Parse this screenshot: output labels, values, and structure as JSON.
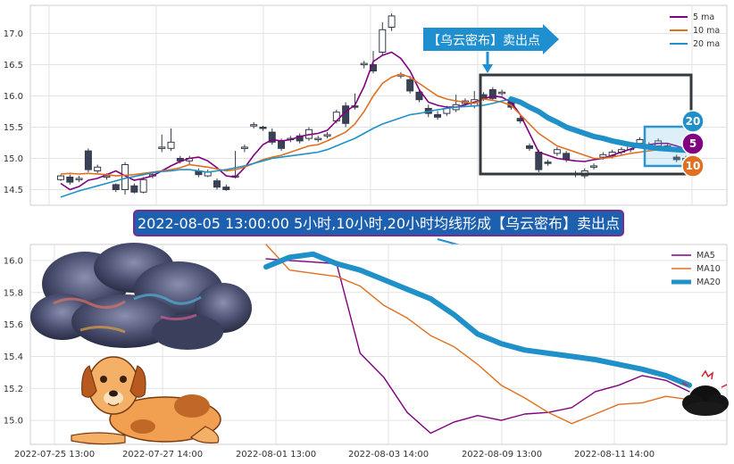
{
  "chart_data": [
    {
      "type": "candlestick",
      "ylim": [
        14.25,
        17.45
      ],
      "yticks": [
        "14.5",
        "15.0",
        "15.5",
        "16.0",
        "16.5",
        "17.0"
      ],
      "legend": {
        "placement": "top-right",
        "entries": [
          {
            "name": "5 ma",
            "color": "#800080"
          },
          {
            "name": "10 ma",
            "color": "#e07020"
          },
          {
            "name": "20 ma",
            "color": "#2090c8"
          }
        ]
      },
      "candles": [
        [
          14.66,
          14.72,
          14.64,
          14.74
        ],
        [
          14.7,
          14.62,
          14.58,
          14.74
        ],
        [
          14.66,
          14.68,
          14.62,
          14.72
        ],
        [
          15.12,
          14.82,
          14.78,
          15.16
        ],
        [
          14.8,
          14.86,
          14.76,
          14.9
        ],
        [
          14.7,
          14.72,
          14.66,
          14.76
        ],
        [
          14.58,
          14.5,
          14.46,
          14.6
        ],
        [
          14.5,
          14.9,
          14.42,
          14.94
        ],
        [
          14.56,
          14.46,
          14.44,
          14.6
        ],
        [
          14.46,
          14.66,
          14.44,
          14.7
        ],
        [
          14.72,
          14.74,
          14.68,
          14.76
        ],
        [
          15.16,
          15.18,
          15.1,
          15.38
        ],
        [
          15.16,
          15.26,
          15.12,
          15.48
        ],
        [
          15.0,
          14.96,
          14.92,
          15.04
        ],
        [
          14.96,
          15.0,
          14.9,
          15.04
        ],
        [
          14.8,
          14.74,
          14.7,
          14.84
        ],
        [
          14.72,
          14.78,
          14.7,
          14.82
        ],
        [
          14.64,
          14.54,
          14.5,
          14.68
        ],
        [
          14.54,
          14.5,
          14.48,
          14.58
        ],
        [
          14.7,
          14.72,
          14.68,
          15.12
        ],
        [
          15.16,
          15.18,
          15.1,
          15.22
        ],
        [
          15.52,
          15.54,
          15.48,
          15.58
        ],
        [
          15.5,
          15.48,
          15.44,
          15.52
        ],
        [
          15.42,
          15.26,
          15.22,
          15.48
        ],
        [
          15.28,
          15.16,
          15.12,
          15.32
        ],
        [
          15.3,
          15.32,
          15.26,
          15.36
        ],
        [
          15.36,
          15.28,
          15.24,
          15.4
        ],
        [
          15.32,
          15.46,
          15.28,
          15.5
        ],
        [
          15.3,
          15.32,
          15.26,
          15.36
        ],
        [
          15.36,
          15.38,
          15.32,
          15.42
        ],
        [
          15.6,
          15.74,
          15.56,
          15.78
        ],
        [
          15.84,
          15.56,
          15.5,
          15.9
        ],
        [
          15.84,
          15.82,
          15.78,
          16.04
        ],
        [
          16.5,
          16.52,
          16.44,
          16.56
        ],
        [
          16.5,
          16.4,
          16.36,
          16.72
        ],
        [
          16.7,
          17.06,
          16.66,
          17.18
        ],
        [
          17.1,
          17.28,
          17.04,
          17.32
        ],
        [
          16.32,
          16.34,
          16.28,
          16.38
        ],
        [
          16.26,
          16.08,
          16.04,
          16.32
        ],
        [
          16.06,
          15.94,
          15.9,
          16.1
        ],
        [
          15.8,
          15.72,
          15.66,
          15.86
        ],
        [
          15.7,
          15.66,
          15.62,
          15.76
        ],
        [
          15.72,
          15.8,
          15.68,
          15.84
        ],
        [
          15.78,
          15.86,
          15.74,
          16.02
        ],
        [
          15.88,
          15.92,
          15.84,
          15.96
        ],
        [
          15.84,
          15.94,
          15.8,
          16.08
        ],
        [
          16.02,
          15.96,
          15.92,
          16.06
        ],
        [
          16.1,
          15.96,
          15.92,
          16.14
        ],
        [
          16.04,
          16.06,
          16.0,
          16.1
        ],
        [
          15.9,
          15.82,
          15.78,
          15.94
        ],
        [
          15.64,
          15.6,
          15.56,
          15.68
        ],
        [
          15.2,
          15.16,
          15.12,
          15.24
        ],
        [
          15.1,
          14.82,
          14.78,
          15.14
        ],
        [
          14.94,
          14.92,
          14.88,
          14.98
        ],
        [
          15.08,
          15.14,
          15.04,
          15.18
        ],
        [
          15.08,
          14.98,
          14.94,
          15.12
        ],
        [
          14.74,
          14.76,
          14.7,
          14.8
        ],
        [
          14.72,
          14.8,
          14.68,
          14.84
        ],
        [
          14.86,
          14.88,
          14.82,
          14.92
        ],
        [
          15.02,
          15.06,
          14.98,
          15.1
        ],
        [
          15.04,
          15.1,
          15.0,
          15.14
        ],
        [
          15.1,
          15.14,
          15.06,
          15.18
        ],
        [
          15.14,
          15.2,
          15.1,
          15.24
        ],
        [
          15.24,
          15.3,
          15.2,
          15.34
        ],
        [
          15.22,
          15.18,
          15.14,
          15.26
        ],
        [
          15.2,
          15.28,
          15.16,
          15.32
        ],
        [
          15.18,
          15.2,
          15.14,
          15.24
        ],
        [
          15.02,
          14.98,
          14.94,
          15.06
        ],
        [
          14.98,
          15.0,
          14.96,
          15.04
        ]
      ],
      "series": [
        {
          "name": "5 ma",
          "color": "#800080",
          "values": [
            14.6,
            14.5,
            14.55,
            14.65,
            14.68,
            14.74,
            14.8,
            14.72,
            14.65,
            14.68,
            14.72,
            14.8,
            14.88,
            14.95,
            15.0,
            15.02,
            14.96,
            14.85,
            14.72,
            14.7,
            14.85,
            15.05,
            15.22,
            15.3,
            15.28,
            15.3,
            15.35,
            15.38,
            15.4,
            15.45,
            15.6,
            15.75,
            15.85,
            16.15,
            16.55,
            16.65,
            16.7,
            16.6,
            16.4,
            16.1,
            15.9,
            15.85,
            15.82,
            15.82,
            15.86,
            15.9,
            15.95,
            16.0,
            15.98,
            15.9,
            15.7,
            15.4,
            15.1,
            15.05,
            15.0,
            14.98,
            14.96,
            14.95,
            14.98,
            15.0,
            15.05,
            15.1,
            15.15,
            15.2,
            15.22,
            15.24,
            15.24,
            15.2,
            15.15
          ]
        },
        {
          "name": "10 ma",
          "color": "#e07020",
          "values": [
            14.75,
            14.76,
            14.75,
            14.76,
            14.75,
            14.74,
            14.72,
            14.73,
            14.74,
            14.76,
            14.78,
            14.8,
            14.82,
            14.85,
            14.9,
            14.88,
            14.86,
            14.83,
            14.8,
            14.82,
            14.86,
            14.92,
            14.98,
            15.02,
            15.05,
            15.1,
            15.15,
            15.2,
            15.22,
            15.28,
            15.35,
            15.42,
            15.55,
            15.75,
            16.0,
            16.2,
            16.3,
            16.35,
            16.3,
            16.2,
            16.1,
            16.0,
            15.95,
            15.92,
            15.9,
            15.88,
            15.95,
            15.93,
            15.9,
            15.85,
            15.7,
            15.55,
            15.4,
            15.3,
            15.2,
            15.15,
            15.1,
            15.05,
            15.0,
            15.0,
            15.02,
            15.05,
            15.08,
            15.1,
            15.12,
            15.14,
            15.15,
            15.14,
            15.12
          ]
        },
        {
          "name": "20 ma",
          "color": "#2090c8",
          "values": [
            14.38,
            14.43,
            14.48,
            14.52,
            14.56,
            14.6,
            14.64,
            14.68,
            14.71,
            14.74,
            14.77,
            14.79,
            14.8,
            14.82,
            14.82,
            14.8,
            14.78,
            14.8,
            14.82,
            14.85,
            14.88,
            14.92,
            14.96,
            15.0,
            15.02,
            15.04,
            15.06,
            15.08,
            15.1,
            15.14,
            15.2,
            15.26,
            15.32,
            15.4,
            15.48,
            15.55,
            15.6,
            15.65,
            15.7,
            15.72,
            15.75,
            15.78,
            15.8,
            15.82,
            15.83,
            15.84,
            15.85,
            15.88,
            15.92,
            15.95,
            15.9,
            15.82,
            15.75,
            15.65,
            15.58,
            15.5,
            15.45,
            15.4,
            15.35,
            15.32,
            15.28,
            15.25,
            15.22,
            15.2,
            15.18,
            15.16,
            15.15,
            15.14,
            15.13
          ]
        }
      ],
      "annotations": {
        "callout": "【乌云密布】卖出点",
        "badges": [
          "20",
          "5",
          "10"
        ]
      }
    },
    {
      "type": "line",
      "ylim": [
        14.85,
        16.1
      ],
      "yticks": [
        "15.0",
        "15.2",
        "15.4",
        "15.6",
        "15.8",
        "16.0"
      ],
      "xticks": [
        "2022-07-25 13:00",
        "2022-07-27 14:00",
        "2022-08-01 13:00",
        "2022-08-03 14:00",
        "2022-08-09 13:00",
        "2022-08-11 14:00"
      ],
      "legend": {
        "placement": "top-right",
        "entries": [
          {
            "name": "MA5",
            "color": "#800080"
          },
          {
            "name": "MA10",
            "color": "#e07020"
          },
          {
            "name": "MA20",
            "color": "#2090c8"
          }
        ]
      },
      "series": [
        {
          "name": "MA5",
          "color": "#800080",
          "values": [
            16.01,
            16.0,
            15.99,
            15.98,
            15.42,
            15.27,
            15.05,
            14.92,
            14.99,
            15.03,
            15.0,
            15.04,
            15.05,
            15.08,
            15.18,
            15.22,
            15.28,
            15.25,
            15.18
          ]
        },
        {
          "name": "MA10",
          "color": "#e07020",
          "values": [
            16.1,
            15.94,
            15.92,
            15.9,
            15.84,
            15.72,
            15.64,
            15.53,
            15.46,
            15.35,
            15.22,
            15.14,
            15.05,
            14.98,
            15.04,
            15.1,
            15.11,
            15.15,
            15.13
          ]
        },
        {
          "name": "MA20",
          "color": "#2090c8",
          "values": [
            15.96,
            16.02,
            16.04,
            15.98,
            15.94,
            15.88,
            15.82,
            15.76,
            15.66,
            15.54,
            15.48,
            15.44,
            15.42,
            15.4,
            15.38,
            15.35,
            15.32,
            15.28,
            15.22
          ]
        }
      ]
    }
  ],
  "banner": {
    "text": "2022-08-05 13:00:00 5小时,10小时,20小时均线形成【乌云密布】卖出点"
  },
  "colors": {
    "ma5": "#800080",
    "ma10": "#e07020",
    "ma20": "#2090c8",
    "banner_bg": "#1e60b0",
    "callout_bg": "#1f8fd0",
    "frame": "#333a3f",
    "grid": "#d9d9d9"
  }
}
